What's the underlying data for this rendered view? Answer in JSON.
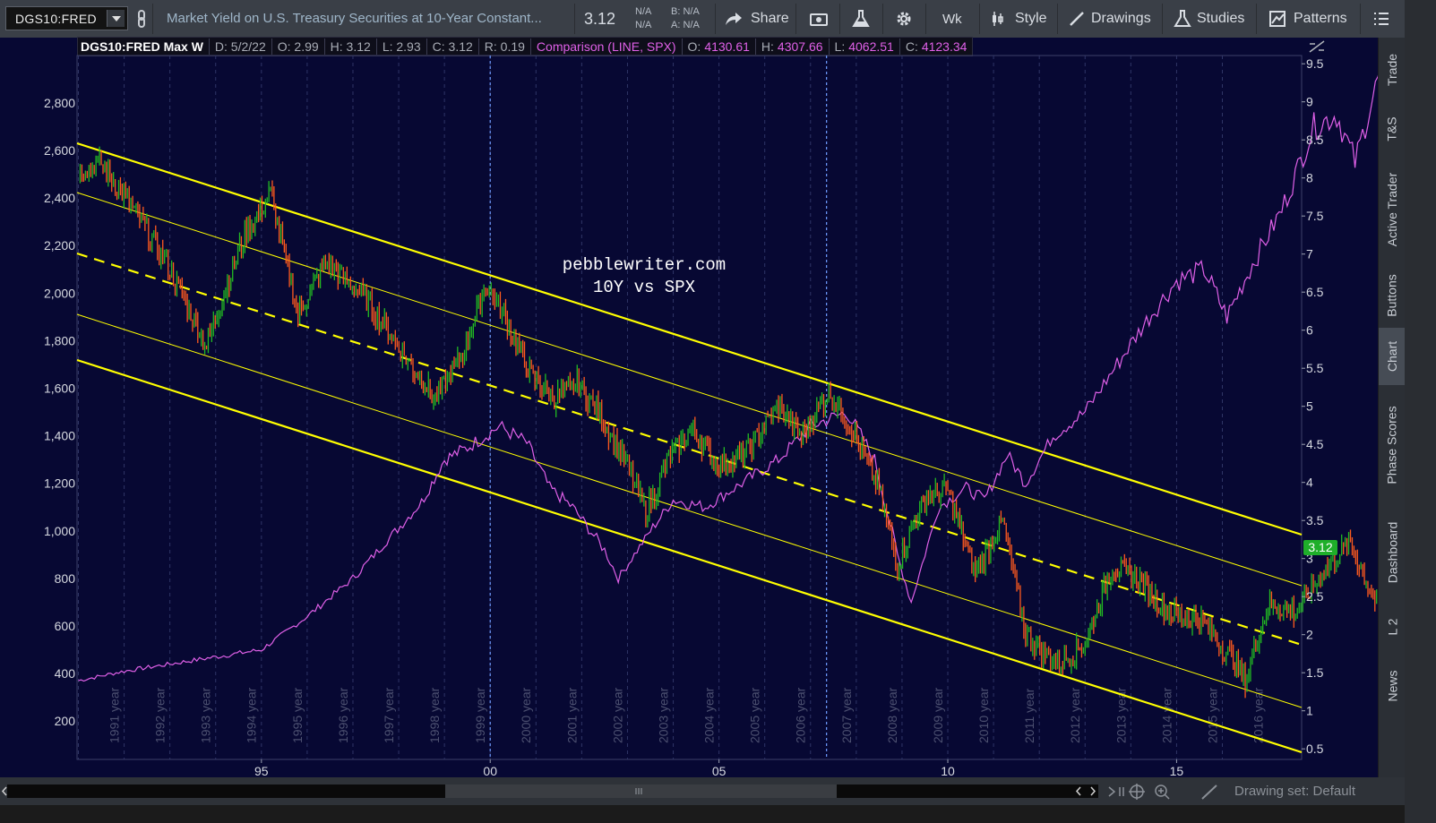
{
  "toolbar": {
    "symbol": "DGS10:FRED",
    "description": "Market Yield on U.S. Treasury Securities at 10-Year Constant...",
    "last": "3.12",
    "na1": "N/A",
    "na2": "N/A",
    "bid": "B: N/A",
    "ask": "A: N/A",
    "share": "Share",
    "aggregation": "Wk",
    "style": "Style",
    "drawings": "Drawings",
    "studies": "Studies",
    "patterns": "Patterns"
  },
  "header": {
    "symbol_period": "DGS10:FRED Max W",
    "date": "D: 5/2/22",
    "open": "O: 2.99",
    "high": "H: 3.12",
    "low": "L: 2.93",
    "close": "C: 3.12",
    "range": "R: 0.19",
    "comparison": "Comparison (LINE, SPX)",
    "cmp_open_label": "O:",
    "cmp_open": "4130.61",
    "cmp_high_label": "H:",
    "cmp_high": "4307.66",
    "cmp_low_label": "L:",
    "cmp_low": "4062.51",
    "cmp_close_label": "C:",
    "cmp_close": "4123.34"
  },
  "annotation": {
    "line1": "pebblewriter.com",
    "line2": "10Y vs SPX"
  },
  "price_badge": "3.12",
  "left_axis": [
    "2,800",
    "2,600",
    "2,400",
    "2,200",
    "2,000",
    "1,800",
    "1,600",
    "1,400",
    "1,200",
    "1,000",
    "800",
    "600",
    "400",
    "200"
  ],
  "right_axis": [
    "9.5",
    "9",
    "8.5",
    "8",
    "7.5",
    "7",
    "6.5",
    "6",
    "5.5",
    "5",
    "4.5",
    "4",
    "3.5",
    "3",
    "2.5",
    "2",
    "1.5",
    "1",
    "0.5"
  ],
  "x_axis": [
    "95",
    "00",
    "05",
    "10",
    "15"
  ],
  "year_labels": [
    "1991 year",
    "1992 year",
    "1993 year",
    "1994 year",
    "1995 year",
    "1996 year",
    "1997 year",
    "1998 year",
    "1999 year",
    "2000 year",
    "2001 year",
    "2002 year",
    "2003 year",
    "2004 year",
    "2005 year",
    "2006 year",
    "2007 year",
    "2008 year",
    "2009 year",
    "2010 year",
    "2011 year",
    "2012 year",
    "2013 year",
    "2014 year",
    "2015 year",
    "2016 year"
  ],
  "side_tabs": [
    "Trade",
    "T&S",
    "Active Trader",
    "Buttons",
    "Chart",
    "Phase Scores",
    "Dashboard",
    "L 2",
    "News"
  ],
  "drawing_set": "Drawing set: Default",
  "colors": {
    "chart_bg": "#070833",
    "channel": "#ffff00",
    "spx_line": "#e060e8",
    "candle_up": "#22bb22",
    "candle_down": "#ff5a1e",
    "badge": "#1faf2a"
  },
  "chart_data": {
    "type": "line",
    "title": "DGS10:FRED Max W",
    "series": [
      {
        "name": "DGS10:FRED",
        "axis": "right",
        "x": [
          1991.0,
          1991.5,
          1992.3,
          1993.0,
          1993.8,
          1994.6,
          1995.2,
          1995.8,
          1996.4,
          1997.3,
          1998.2,
          1998.8,
          1999.4,
          1999.9,
          2000.3,
          2000.9,
          2001.4,
          2001.9,
          2002.4,
          2003.0,
          2003.4,
          2003.9,
          2004.4,
          2005.0,
          2005.6,
          2006.3,
          2006.8,
          2007.4,
          2007.9,
          2008.5,
          2008.9,
          2009.5,
          2010.0,
          2010.6,
          2011.2,
          2011.7,
          2012.4,
          2013.0,
          2013.6,
          2014.2,
          2014.8,
          2015.5,
          2016.2,
          2016.5,
          2017.0,
          2017.6,
          2018.3,
          2018.8,
          2019.6,
          2020.2,
          2020.6,
          2021.3,
          2021.9,
          2022.34
        ],
        "values": [
          8.1,
          8.2,
          7.5,
          6.8,
          5.8,
          7.2,
          7.8,
          6.2,
          6.9,
          6.4,
          5.6,
          5.1,
          5.7,
          6.6,
          6.2,
          5.4,
          5.1,
          5.3,
          4.9,
          4.2,
          3.6,
          4.3,
          4.7,
          4.2,
          4.4,
          5.0,
          4.6,
          5.2,
          4.7,
          3.9,
          2.9,
          3.8,
          3.9,
          2.8,
          3.5,
          2.0,
          1.6,
          1.9,
          2.9,
          2.7,
          2.3,
          2.2,
          1.7,
          1.4,
          2.4,
          2.3,
          2.9,
          3.2,
          2.1,
          1.6,
          0.6,
          1.6,
          1.4,
          3.12
        ]
      },
      {
        "name": "SPX",
        "axis": "left",
        "x": [
          1991.0,
          1992.0,
          1993.0,
          1994.0,
          1995.0,
          1996.0,
          1997.0,
          1997.8,
          1998.5,
          1999.0,
          1999.5,
          2000.2,
          2000.8,
          2001.3,
          2001.8,
          2002.5,
          2002.8,
          2003.5,
          2004.0,
          2004.7,
          2005.5,
          2006.3,
          2007.0,
          2007.8,
          2008.4,
          2008.9,
          2009.2,
          2009.8,
          2010.4,
          2010.8,
          2011.3,
          2011.7,
          2012.3,
          2013.0,
          2013.7,
          2014.4,
          2015.0,
          2015.6,
          2016.1,
          2016.6,
          2017.3,
          2018.0,
          2018.5,
          2018.9,
          2019.4,
          2020.2,
          2020.6,
          2021.2,
          2021.9,
          2022.34
        ],
        "values": [
          370,
          410,
          440,
          470,
          500,
          640,
          800,
          970,
          1120,
          1300,
          1350,
          1440,
          1370,
          1180,
          1100,
          920,
          800,
          1000,
          1130,
          1100,
          1200,
          1300,
          1440,
          1500,
          1300,
          900,
          700,
          1100,
          1180,
          1130,
          1320,
          1200,
          1400,
          1500,
          1700,
          1900,
          2050,
          2100,
          1900,
          2100,
          2350,
          2700,
          2750,
          2550,
          2900,
          3300,
          3000,
          3900,
          4700,
          4123.34
        ]
      }
    ],
    "left_ylim": [
      200,
      2900
    ],
    "right_ylim": [
      0.5,
      9.5
    ],
    "xlim": [
      1991,
      2022.5
    ],
    "grid": true
  }
}
